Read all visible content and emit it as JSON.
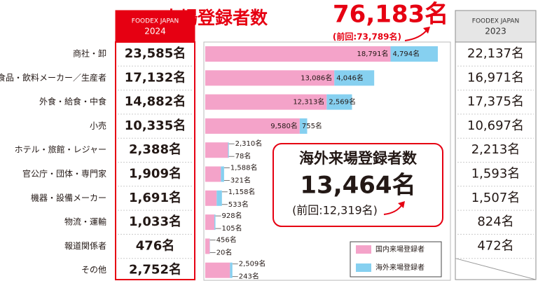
{
  "chart_data": {
    "type": "bar",
    "orientation": "horizontal",
    "stacked": true,
    "title": "来場登録者数",
    "total": "76,183名",
    "previous": "(前回:73,789名)",
    "categories": [
      "商社・卸",
      "食品・飲料メーカー／生産者",
      "外食・給食・中食",
      "小売",
      "ホテル・旅館・レジャー",
      "官公庁・団体・専門家",
      "機器・設備メーカー",
      "物流・運輸",
      "報道関係者",
      "その他"
    ],
    "series": [
      {
        "name": "国内来場登録者",
        "color": "#f4a3c9",
        "values": [
          18791,
          13086,
          12313,
          9580,
          2310,
          1588,
          1158,
          928,
          456,
          2509
        ],
        "value_labels": [
          "18,791名",
          "13,086名",
          "12,313名",
          "9,580名",
          "2,310名",
          "1,588名",
          "1,158名",
          "928名",
          "456名",
          "2,509名"
        ]
      },
      {
        "name": "海外来場登録者",
        "color": "#86d0f0",
        "values": [
          4794,
          4046,
          2569,
          755,
          78,
          321,
          533,
          105,
          20,
          243
        ],
        "value_labels": [
          "4,794名",
          "4,046名",
          "2,569名",
          "755名",
          "78名",
          "321名",
          "533名",
          "105名",
          "20名",
          "243名"
        ]
      }
    ],
    "columns": [
      {
        "header": [
          "FOODEX JAPAN",
          "2024"
        ],
        "color": "#e60012",
        "values": [
          23585,
          17132,
          14882,
          10335,
          2388,
          1909,
          1691,
          1033,
          476,
          2752
        ],
        "value_labels": [
          "23,585名",
          "17,132名",
          "14,882名",
          "10,335名",
          "2,388名",
          "1,909名",
          "1,691名",
          "1,033名",
          "476名",
          "2,752名"
        ]
      },
      {
        "header": [
          "FOODEX JAPAN",
          "2023"
        ],
        "color": "#8c8c8c",
        "values": [
          22137,
          16971,
          17375,
          10697,
          2213,
          1593,
          1507,
          824,
          472,
          null
        ],
        "value_labels": [
          "22,137名",
          "16,971名",
          "17,375名",
          "10,697名",
          "2,213名",
          "1,593名",
          "1,507名",
          "824名",
          "472名",
          null
        ]
      }
    ],
    "callout": {
      "title": "海外来場登録者数",
      "total": "13,464名",
      "previous": "(前回:12,319名)"
    }
  }
}
